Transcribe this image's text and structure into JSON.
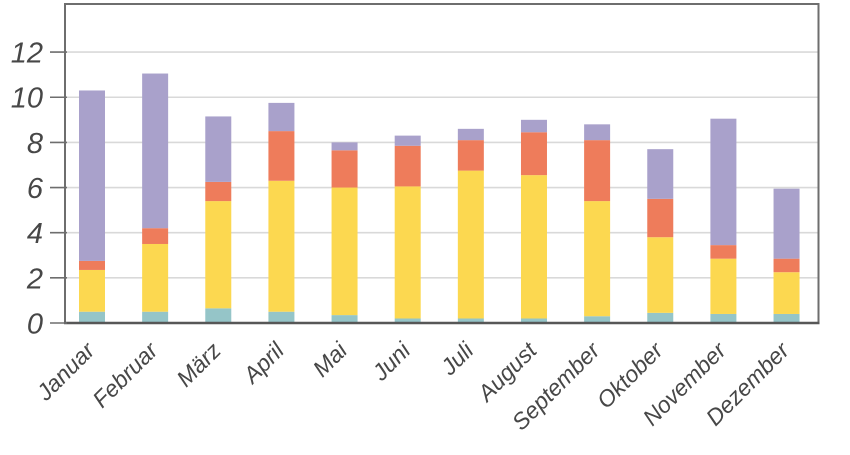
{
  "chart_data": {
    "type": "bar",
    "stacked": true,
    "title": "",
    "xlabel": "",
    "ylabel": "",
    "categories": [
      "Januar",
      "Februar",
      "März",
      "April",
      "Mai",
      "Juni",
      "Juli",
      "August",
      "September",
      "Oktober",
      "November",
      "Dezember"
    ],
    "series": [
      {
        "name": "series-teal",
        "color": "#95c5c8",
        "values": [
          0.5,
          0.5,
          0.65,
          0.5,
          0.35,
          0.2,
          0.2,
          0.2,
          0.3,
          0.45,
          0.4,
          0.4
        ]
      },
      {
        "name": "series-yellow",
        "color": "#fcd850",
        "values": [
          1.85,
          3.0,
          4.75,
          5.8,
          5.65,
          5.85,
          6.55,
          6.35,
          5.1,
          3.35,
          2.45,
          1.85
        ]
      },
      {
        "name": "series-orange",
        "color": "#ee7c5b",
        "values": [
          0.4,
          0.7,
          0.85,
          2.2,
          1.65,
          1.8,
          1.35,
          1.9,
          2.7,
          1.7,
          0.6,
          0.6
        ]
      },
      {
        "name": "series-purple",
        "color": "#a9a1cb",
        "values": [
          7.55,
          6.85,
          2.9,
          1.25,
          0.35,
          0.45,
          0.5,
          0.55,
          0.7,
          2.2,
          5.6,
          3.1
        ]
      }
    ],
    "totals": [
      10.3,
      11.05,
      9.15,
      9.75,
      8.0,
      8.3,
      8.6,
      9.0,
      8.8,
      7.7,
      9.05,
      5.95
    ],
    "ylim": [
      0,
      14.13
    ],
    "yticks": [
      0,
      2,
      4,
      6,
      8,
      10,
      12
    ],
    "ytick_labels": [
      "0",
      "2",
      "4",
      "6",
      "8",
      "10",
      "12"
    ],
    "grid": true,
    "legend": false,
    "colors": {
      "background": "#ffffff",
      "gridline": "#d9d9d9",
      "plot_border": "#6e6e6e",
      "axis_line": "#575757",
      "tick_mark": "#6e6e6e",
      "tick_text": "#474747"
    }
  }
}
